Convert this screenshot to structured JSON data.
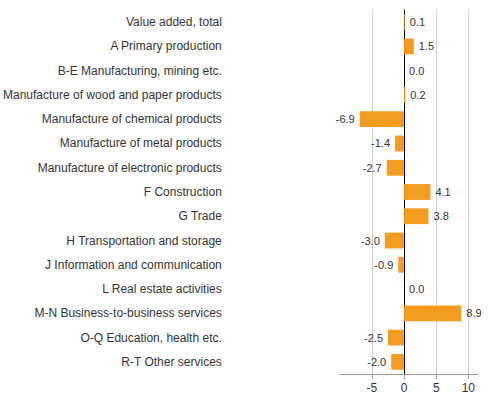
{
  "chart_data": {
    "type": "bar",
    "orientation": "horizontal",
    "categories": [
      "Value added, total",
      "A Primary production",
      "B-E Manufacturing, mining etc.",
      "Manufacture of wood and paper products",
      "Manufacture of chemical products",
      "Manufacture of metal products",
      "Manufacture of electronic products",
      "F Construction",
      "G Trade",
      "H Transportation and storage",
      "J Information and communication",
      "L Real estate activities",
      "M-N Business-to-business services",
      "O-Q Education, health etc.",
      "R-T Other services"
    ],
    "values": [
      0.1,
      1.5,
      0.0,
      0.2,
      -6.9,
      -1.4,
      -2.7,
      4.1,
      3.8,
      -3.0,
      -0.9,
      0.0,
      8.9,
      -2.5,
      -2.0
    ],
    "value_labels": [
      "0.1",
      "1.5",
      "0.0",
      "0.2",
      "-6.9",
      "-1.4",
      "-2.7",
      "4.1",
      "3.8",
      "-3.0",
      "-0.9",
      "0.0",
      "8.9",
      "-2.5",
      "-2.0"
    ],
    "color": "#f39c1f",
    "xlim": [
      -10,
      11.5
    ],
    "xticks": [
      -5,
      0,
      5,
      10
    ],
    "grid": true,
    "data_labels": true
  }
}
